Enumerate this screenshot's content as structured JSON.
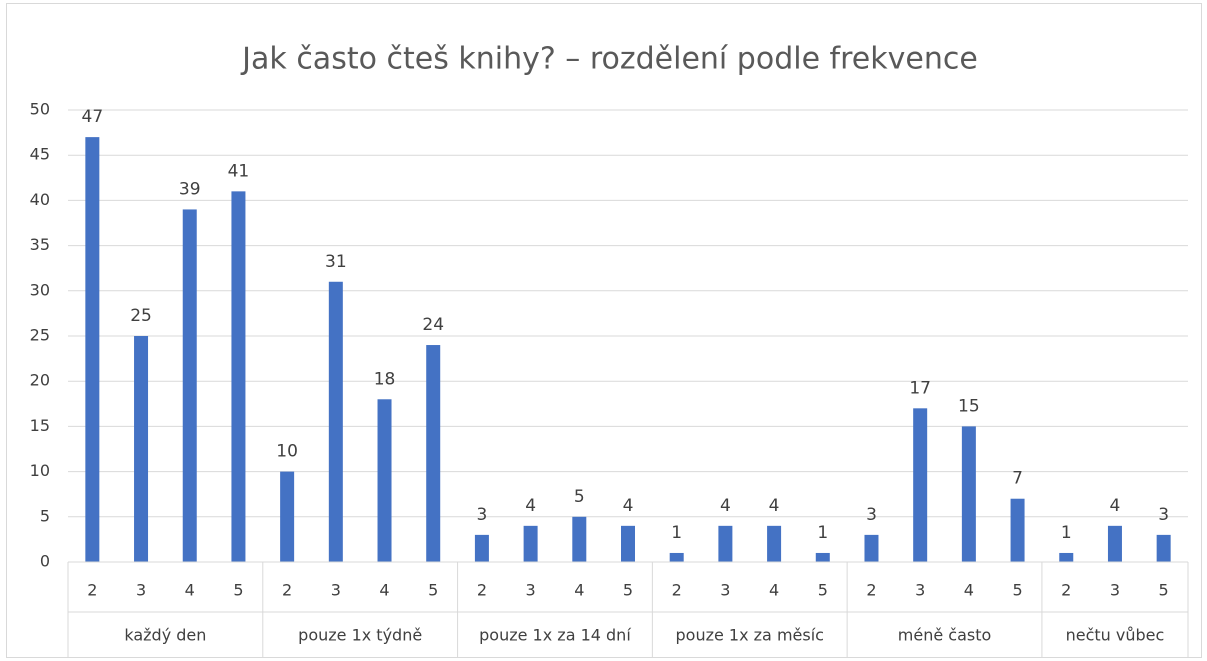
{
  "chart_data": {
    "type": "bar",
    "title": "Jak často čteš knihy? – rozdělení podle frekvence",
    "color": "#4472c4",
    "grid": true,
    "ylim": [
      0,
      50
    ],
    "yticks": [
      0,
      5,
      10,
      15,
      20,
      25,
      30,
      35,
      40,
      45,
      50
    ],
    "groups": [
      {
        "name": "každý den",
        "categories": [
          "2",
          "3",
          "4",
          "5"
        ],
        "values": [
          47,
          25,
          39,
          41
        ]
      },
      {
        "name": "pouze 1x týdně",
        "categories": [
          "2",
          "3",
          "4",
          "5"
        ],
        "values": [
          10,
          31,
          18,
          24
        ]
      },
      {
        "name": "pouze 1x za 14 dní",
        "categories": [
          "2",
          "3",
          "4",
          "5"
        ],
        "values": [
          3,
          4,
          5,
          4
        ]
      },
      {
        "name": "pouze 1x za měsíc",
        "categories": [
          "2",
          "3",
          "4",
          "5"
        ],
        "values": [
          1,
          4,
          4,
          1
        ]
      },
      {
        "name": "méně často",
        "categories": [
          "2",
          "3",
          "4",
          "5"
        ],
        "values": [
          3,
          17,
          15,
          7
        ]
      },
      {
        "name": "nečtu vůbec",
        "categories": [
          "2",
          "3",
          "5"
        ],
        "values": [
          1,
          4,
          3
        ]
      }
    ]
  }
}
